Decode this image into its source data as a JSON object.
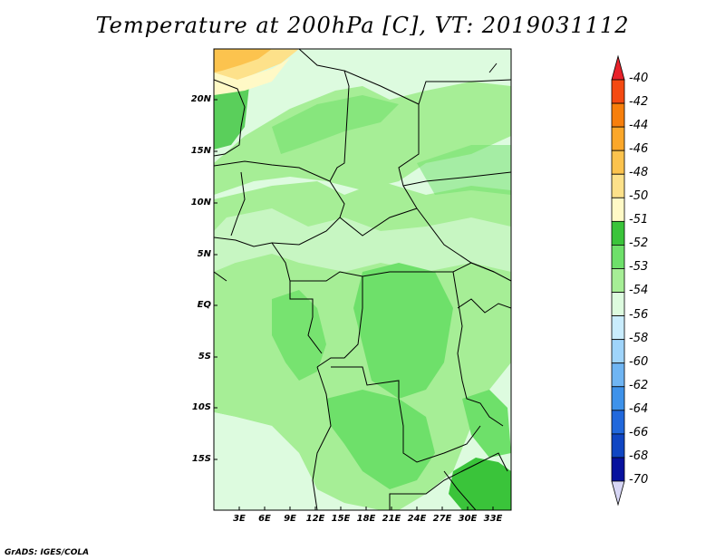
{
  "title": "Temperature at 200hPa [C], VT: 2019031112",
  "credit": "GrADS: IGES/COLA",
  "map": {
    "y_labels": [
      "20N",
      "15N",
      "10N",
      "5N",
      "EQ",
      "5S",
      "10S",
      "15S"
    ],
    "x_labels": [
      "3E",
      "6E",
      "9E",
      "12E",
      "15E",
      "18E",
      "21E",
      "24E",
      "27E",
      "30E",
      "33E"
    ]
  },
  "colorbar": {
    "labels": [
      "-40",
      "-42",
      "-44",
      "-46",
      "-48",
      "-50",
      "-51",
      "-52",
      "-53",
      "-54",
      "-56",
      "-58",
      "-60",
      "-62",
      "-64",
      "-66",
      "-68",
      "-70"
    ],
    "colors": [
      "#e8222a",
      "#f44a12",
      "#f77f0c",
      "#fba72a",
      "#fcc34e",
      "#fde18a",
      "#fff9c6",
      "#3ac43a",
      "#6ee06a",
      "#a6ee96",
      "#ddfbdf",
      "#c9ecfd",
      "#9fd4fa",
      "#6fb5f3",
      "#3e92ea",
      "#2168dc",
      "#1046c3",
      "#07129e",
      "#d7d6f5"
    ]
  }
}
